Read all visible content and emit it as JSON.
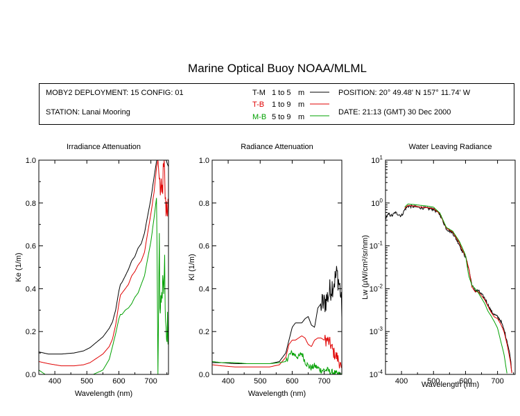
{
  "title": "Marine Optical Buoy NOAA/MLML",
  "info": {
    "deployment": "MOBY2 DEPLOYMENT: 15 CONFIG: 01",
    "station": "STATION: Lanai Mooring",
    "position": "POSITION: 20° 49.48' N   157° 11.74' W",
    "date": "DATE: 21:13 (GMT) 30 Dec 2000",
    "legend": [
      {
        "code": "T-M",
        "range": "1 to 5",
        "unit": "m",
        "color": "#000000"
      },
      {
        "code": "T-B",
        "range": "1 to 9",
        "unit": "m",
        "color": "#e00000"
      },
      {
        "code": "M-B",
        "range": "5 to 9",
        "unit": "m",
        "color": "#00a000"
      }
    ]
  },
  "chart_data": [
    {
      "type": "line",
      "title": "Irradiance Attenuation",
      "xlabel": "Wavelength (nm)",
      "ylabel": "Ke  (1/m)",
      "xlim": [
        350,
        755
      ],
      "ylim": [
        0,
        1
      ],
      "yscale": "linear",
      "xticks": [
        400,
        500,
        600,
        700
      ],
      "yticks": [
        {
          "v": 0.0,
          "l": "0.0"
        },
        {
          "v": 0.2,
          "l": "0.2"
        },
        {
          "v": 0.4,
          "l": "0.4"
        },
        {
          "v": 0.6,
          "l": "0.6"
        },
        {
          "v": 0.8,
          "l": "0.8"
        },
        {
          "v": 1.0,
          "l": "1.0"
        }
      ],
      "series": [
        {
          "code": "T-M",
          "color": "#000000",
          "x": [
            350,
            380,
            420,
            460,
            490,
            510,
            530,
            550,
            570,
            580,
            590,
            600,
            605,
            610,
            620,
            630,
            640,
            650,
            660,
            670,
            680,
            690,
            700,
            710,
            718,
            722,
            728,
            732,
            736,
            740,
            744,
            748,
            752,
            755
          ],
          "y": [
            0.105,
            0.095,
            0.095,
            0.1,
            0.11,
            0.125,
            0.15,
            0.175,
            0.215,
            0.245,
            0.3,
            0.39,
            0.42,
            0.43,
            0.46,
            0.49,
            0.53,
            0.55,
            0.59,
            0.61,
            0.66,
            0.74,
            0.82,
            0.92,
            1.0,
            1.0,
            1.0,
            1.0,
            1.0,
            1.0,
            1.0,
            1.0,
            0.98,
            0.97
          ],
          "noise_from": 760,
          "noise_amp": 0
        },
        {
          "code": "T-B",
          "color": "#e00000",
          "x": [
            350,
            380,
            420,
            460,
            490,
            510,
            530,
            550,
            570,
            580,
            590,
            600,
            605,
            610,
            620,
            630,
            640,
            650,
            660,
            670,
            680,
            690,
            700,
            710,
            718,
            722,
            726,
            730,
            734,
            738,
            742,
            746,
            750,
            755
          ],
          "y": [
            0.06,
            0.05,
            0.04,
            0.04,
            0.045,
            0.055,
            0.075,
            0.095,
            0.13,
            0.165,
            0.23,
            0.33,
            0.37,
            0.38,
            0.4,
            0.42,
            0.46,
            0.48,
            0.51,
            0.53,
            0.57,
            0.66,
            0.75,
            0.85,
            0.97,
            1.0,
            0.92,
            0.86,
            0.82,
            0.92,
            0.95,
            0.78,
            0.8,
            0.76
          ],
          "noise_from": 728,
          "noise_amp": 0.08
        },
        {
          "code": "M-B",
          "color": "#00a000",
          "x": [
            350,
            360,
            370,
            380,
            400,
            460,
            520,
            550,
            570,
            580,
            590,
            600,
            605,
            610,
            620,
            630,
            640,
            650,
            660,
            670,
            680,
            690,
            700,
            710,
            718,
            722,
            726,
            730,
            734,
            738,
            742,
            746,
            750,
            755
          ],
          "y": [
            0.02,
            0.01,
            0.0,
            0.0,
            0.0,
            0.0,
            0.0,
            0.02,
            0.07,
            0.13,
            0.19,
            0.26,
            0.28,
            0.28,
            0.3,
            0.31,
            0.33,
            0.36,
            0.38,
            0.42,
            0.46,
            0.54,
            0.62,
            0.73,
            0.83,
            0.0,
            0.6,
            0.25,
            0.45,
            0.3,
            0.5,
            0.35,
            0.15,
            0.15
          ],
          "noise_from": 726,
          "noise_amp": 0.15
        }
      ]
    },
    {
      "type": "line",
      "title": "Radiance Attenuation",
      "xlabel": "Wavelength (nm)",
      "ylabel": "Kl  (1/m)",
      "xlim": [
        350,
        755
      ],
      "ylim": [
        0,
        1
      ],
      "yscale": "linear",
      "xticks": [
        400,
        500,
        600,
        700
      ],
      "yticks": [
        {
          "v": 0.0,
          "l": "0.0"
        },
        {
          "v": 0.2,
          "l": "0.2"
        },
        {
          "v": 0.4,
          "l": "0.4"
        },
        {
          "v": 0.6,
          "l": "0.6"
        },
        {
          "v": 0.8,
          "l": "0.8"
        },
        {
          "v": 1.0,
          "l": "1.0"
        }
      ],
      "series": [
        {
          "code": "T-M",
          "color": "#000000",
          "x": [
            350,
            380,
            420,
            460,
            500,
            530,
            560,
            580,
            590,
            600,
            610,
            620,
            630,
            640,
            650,
            660,
            670,
            680,
            690,
            700,
            710,
            720,
            730,
            740,
            750,
            755
          ],
          "y": [
            0.055,
            0.055,
            0.05,
            0.05,
            0.05,
            0.05,
            0.06,
            0.1,
            0.16,
            0.22,
            0.24,
            0.24,
            0.24,
            0.26,
            0.27,
            0.23,
            0.22,
            0.31,
            0.33,
            0.33,
            0.36,
            0.4,
            0.43,
            0.47,
            0.4,
            0.3
          ],
          "noise_from": 690,
          "noise_amp": 0.06
        },
        {
          "code": "T-B",
          "color": "#e00000",
          "x": [
            350,
            380,
            420,
            460,
            500,
            530,
            560,
            580,
            590,
            600,
            610,
            620,
            630,
            640,
            650,
            660,
            670,
            680,
            690,
            700,
            710,
            720,
            730,
            740,
            750,
            755
          ],
          "y": [
            0.045,
            0.04,
            0.035,
            0.035,
            0.035,
            0.035,
            0.045,
            0.08,
            0.14,
            0.16,
            0.16,
            0.17,
            0.18,
            0.17,
            0.14,
            0.13,
            0.16,
            0.17,
            0.17,
            0.16,
            0.16,
            0.14,
            0.1,
            0.08,
            0.05,
            0.0
          ],
          "noise_from": 700,
          "noise_amp": 0.03
        },
        {
          "code": "M-B",
          "color": "#00a000",
          "x": [
            350,
            380,
            420,
            460,
            500,
            530,
            560,
            580,
            590,
            600,
            610,
            620,
            630,
            640,
            650,
            660,
            670,
            680,
            690,
            700,
            710,
            720,
            730,
            740,
            750,
            755
          ],
          "y": [
            0.06,
            0.055,
            0.055,
            0.05,
            0.05,
            0.05,
            0.055,
            0.06,
            0.09,
            0.1,
            0.09,
            0.08,
            0.1,
            0.06,
            0.04,
            0.03,
            0.04,
            0.03,
            0.02,
            0.02,
            0.02,
            0.01,
            0.01,
            0.0,
            0.0,
            0.0
          ],
          "noise_from": 580,
          "noise_amp": 0.015
        }
      ]
    },
    {
      "type": "line",
      "title": "Water Leaving Radiance",
      "xlabel": "Wavelength (nm)",
      "ylabel": "Lw  (µW/cm²/sr/nm)",
      "xlim": [
        350,
        755
      ],
      "ylim": [
        0.0001,
        10
      ],
      "yscale": "log",
      "xticks": [
        400,
        500,
        600,
        700
      ],
      "yticks": [
        {
          "v": 10,
          "b": "10",
          "e": "1"
        },
        {
          "v": 1,
          "b": "10",
          "e": "0"
        },
        {
          "v": 0.1,
          "b": "10",
          "e": "-1"
        },
        {
          "v": 0.01,
          "b": "10",
          "e": "-2"
        },
        {
          "v": 0.001,
          "b": "10",
          "e": "-3"
        },
        {
          "v": 0.0001,
          "b": "10",
          "e": "-4"
        }
      ],
      "series": [
        {
          "code": "T-M",
          "color": "#000000",
          "x": [
            350,
            360,
            370,
            380,
            390,
            400,
            410,
            420,
            440,
            460,
            480,
            500,
            520,
            540,
            560,
            580,
            590,
            600,
            610,
            620,
            630,
            640,
            660,
            680,
            690,
            700,
            710,
            720,
            730,
            740,
            745
          ],
          "y": [
            0.45,
            0.55,
            0.5,
            0.6,
            0.55,
            0.5,
            0.7,
            0.85,
            0.82,
            0.78,
            0.75,
            0.72,
            0.55,
            0.25,
            0.2,
            0.11,
            0.075,
            0.055,
            0.03,
            0.012,
            0.009,
            0.009,
            0.006,
            0.003,
            0.0025,
            0.0022,
            0.0018,
            0.0011,
            0.0006,
            0.00025,
            0.0001
          ],
          "noise_from": 350,
          "noise_amp": 0.08
        },
        {
          "code": "T-B",
          "color": "#e00000",
          "x": [
            410,
            420,
            440,
            460,
            480,
            500,
            520,
            540,
            560,
            580,
            590,
            600,
            610,
            620,
            630,
            640,
            660,
            680,
            690,
            700,
            710,
            720,
            730,
            740,
            745
          ],
          "y": [
            0.75,
            0.88,
            0.85,
            0.8,
            0.78,
            0.74,
            0.56,
            0.26,
            0.21,
            0.12,
            0.08,
            0.058,
            0.03,
            0.011,
            0.0085,
            0.0085,
            0.0055,
            0.0028,
            0.0022,
            0.002,
            0.0015,
            0.001,
            0.0005,
            0.0002,
            0.0001
          ],
          "noise_from": 760,
          "noise_amp": 0
        },
        {
          "code": "M-B",
          "color": "#00a000",
          "x": [
            410,
            420,
            440,
            460,
            480,
            500,
            520,
            540,
            560,
            580,
            590,
            600,
            610,
            620,
            630,
            640,
            650,
            660,
            670,
            680,
            690,
            700,
            710,
            720,
            730
          ],
          "y": [
            0.8,
            0.95,
            0.92,
            0.88,
            0.85,
            0.8,
            0.58,
            0.27,
            0.22,
            0.13,
            0.09,
            0.06,
            0.02,
            0.012,
            0.01,
            0.008,
            0.006,
            0.0045,
            0.003,
            0.0023,
            0.0017,
            0.0012,
            0.0006,
            0.0003,
            0.0001
          ],
          "noise_from": 760,
          "noise_amp": 0
        }
      ]
    }
  ]
}
